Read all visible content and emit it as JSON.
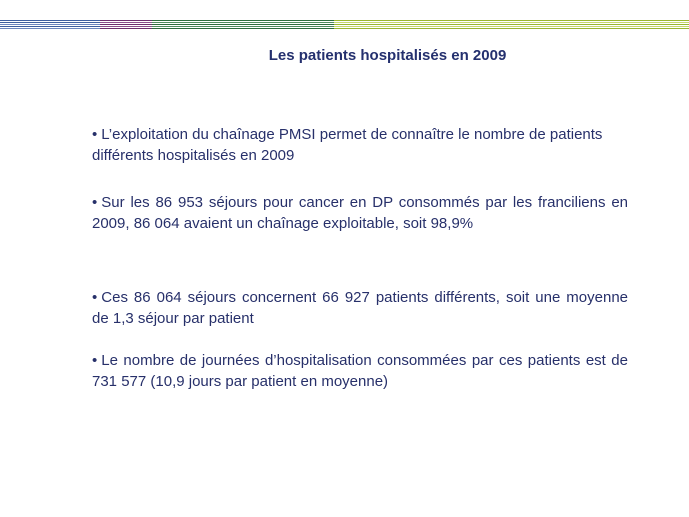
{
  "slide": {
    "title": "Les patients hospitalisés en 2009",
    "bullet_symbol": "•",
    "bullets": [
      "L’exploitation du chaînage PMSI permet de connaître le nombre de patients différents hospitalisés en 2009",
      "Sur les 86 953 séjours pour cancer en DP consommés par les franciliens en 2009, 86 064 avaient un chaînage exploitable, soit 98,9%",
      "Ces 86 064 séjours concernent 66 927 patients différents, soit une moyenne de 1,3 séjour par patient",
      "Le nombre de journées d’hospitalisation consommées par ces patients est de 731 577 (10,9 jours par patient en moyenne)"
    ]
  },
  "colors": {
    "title": "#24306e",
    "text": "#27306a",
    "stripe_blue": "#3f5f9e",
    "stripe_purple": "#6b2f6e",
    "stripe_green": "#9ab730",
    "stripe_light_green": "#c5d96a"
  }
}
